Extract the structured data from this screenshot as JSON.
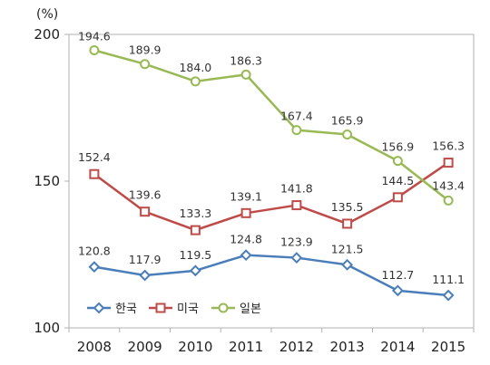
{
  "chart_data": {
    "type": "line",
    "title": "",
    "xlabel": "",
    "ylabel": "",
    "y_unit": "(%)",
    "ylim": [
      100,
      200
    ],
    "yticks": [
      100,
      150,
      200
    ],
    "grid": false,
    "legend_position": "bottom-left",
    "categories": [
      "2008",
      "2009",
      "2010",
      "2011",
      "2012",
      "2013",
      "2014",
      "2015"
    ],
    "series": [
      {
        "name": "한국",
        "color": "#4a7ebb",
        "marker": "diamond",
        "values": [
          120.8,
          117.9,
          119.5,
          124.8,
          123.9,
          121.5,
          112.7,
          111.1
        ],
        "labels": [
          "120.8",
          "117.9",
          "119.5",
          "124.8",
          "123.9",
          "121.5",
          "112.7",
          "111.1"
        ]
      },
      {
        "name": "미국",
        "color": "#be4b48",
        "marker": "square",
        "values": [
          152.4,
          139.6,
          133.3,
          139.1,
          141.8,
          135.5,
          144.5,
          156.3
        ],
        "labels": [
          "152.4",
          "139.6",
          "133.3",
          "139.1",
          "141.8",
          "135.5",
          "144.5",
          "156.3"
        ]
      },
      {
        "name": "일본",
        "color": "#98b954",
        "marker": "circle",
        "values": [
          194.6,
          189.9,
          184.0,
          186.3,
          167.4,
          165.9,
          156.9,
          143.4
        ],
        "labels": [
          "194.6",
          "189.9",
          "184.0",
          "186.3",
          "167.4",
          "165.9",
          "156.9",
          "143.4"
        ]
      }
    ]
  }
}
